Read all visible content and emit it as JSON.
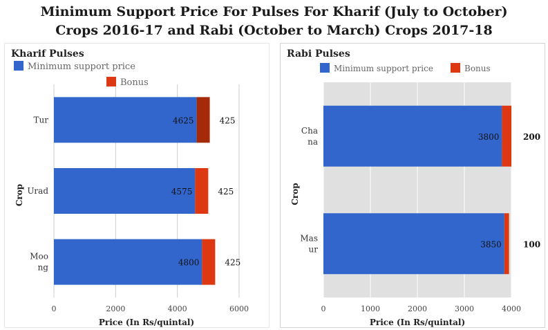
{
  "title_lines": [
    "Minimum Support Price For Pulses For Kharif (July to October)",
    "Crops 2016-17 and Rabi (October to March) Crops 2017-18"
  ],
  "colors": {
    "msp": "#3366cc",
    "bonus": "#dc3912",
    "bonus_highlight": "#a52a0a",
    "plot_bg_rabi": "#e0e0e0"
  },
  "chart_data": [
    {
      "type": "bar",
      "orientation": "horizontal",
      "stacked": true,
      "title": "Kharif Pulses",
      "xlabel": "Price (In Rs/quintal)",
      "ylabel": "Crop",
      "xlim": [
        0,
        6000
      ],
      "xticks": [
        0,
        2000,
        4000,
        6000
      ],
      "legend": {
        "position": "top",
        "entries": [
          "Minimum support price",
          "Bonus"
        ]
      },
      "categories": [
        [
          "Tur"
        ],
        [
          "Urad"
        ],
        [
          "Moo",
          "ng"
        ]
      ],
      "series": [
        {
          "name": "Minimum support price",
          "values": [
            4625,
            4575,
            4800
          ]
        },
        {
          "name": "Bonus",
          "values": [
            425,
            425,
            425
          ]
        }
      ],
      "highlighted_bonus_index": 0
    },
    {
      "type": "bar",
      "orientation": "horizontal",
      "stacked": true,
      "title": "Rabi Pulses",
      "xlabel": "Price (In Rs/quintal)",
      "ylabel": "Crop",
      "xlim": [
        0,
        4000
      ],
      "xticks": [
        0,
        1000,
        2000,
        3000,
        4000
      ],
      "legend": {
        "position": "top",
        "entries": [
          "Minimum support price",
          "Bonus"
        ]
      },
      "categories": [
        [
          "Cha",
          "na"
        ],
        [
          "Mas",
          "ur"
        ]
      ],
      "series": [
        {
          "name": "Minimum support price",
          "values": [
            3800,
            3850
          ]
        },
        {
          "name": "Bonus",
          "values": [
            200,
            100
          ]
        }
      ],
      "highlighted_bonus_index": -1
    }
  ]
}
